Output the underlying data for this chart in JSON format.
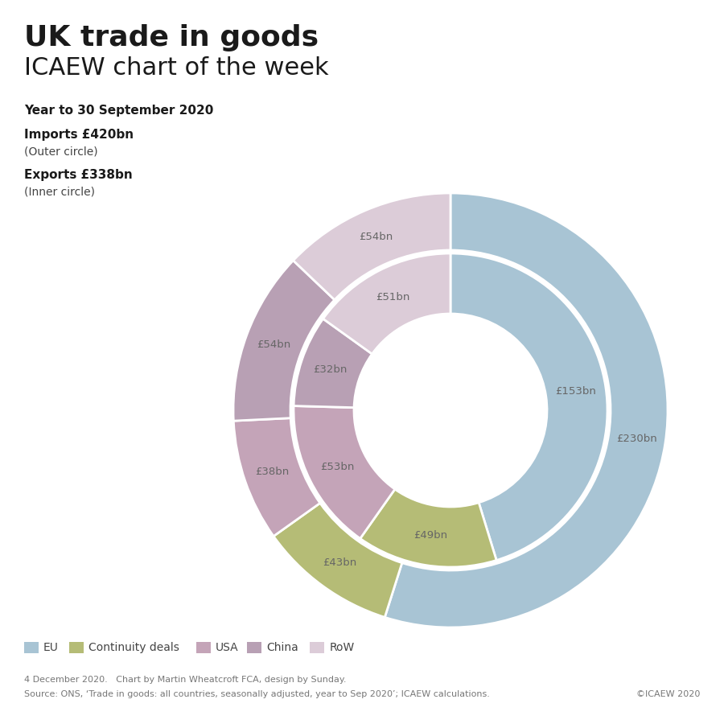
{
  "title_line1": "UK trade in goods",
  "title_line2": "ICAEW chart of the week",
  "subtitle": "Year to 30 September 2020",
  "imports_label": "Imports £420bn",
  "imports_sublabel": "(Outer circle)",
  "exports_label": "Exports £338bn",
  "exports_sublabel": "(Inner circle)",
  "categories": [
    "EU",
    "Continuity deals",
    "USA",
    "China",
    "RoW"
  ],
  "exports": [
    153,
    49,
    53,
    32,
    51
  ],
  "imports": [
    230,
    43,
    38,
    54,
    54
  ],
  "eu_color": "#a8c4d4",
  "continuity_color": "#b5bc76",
  "usa_color": "#c4a4b8",
  "china_color": "#b8a0b4",
  "row_color": "#dcccd8",
  "background_color": "#ffffff",
  "footnote_line1": "4 December 2020.   Chart by Martin Wheatcroft FCA, design by Sunday.",
  "footnote_line2": "Source: ONS, ‘Trade in goods: all countries, seasonally adjusted, year to Sep 2020’; ICAEW calculations.",
  "copyright": "©ICAEW 2020"
}
